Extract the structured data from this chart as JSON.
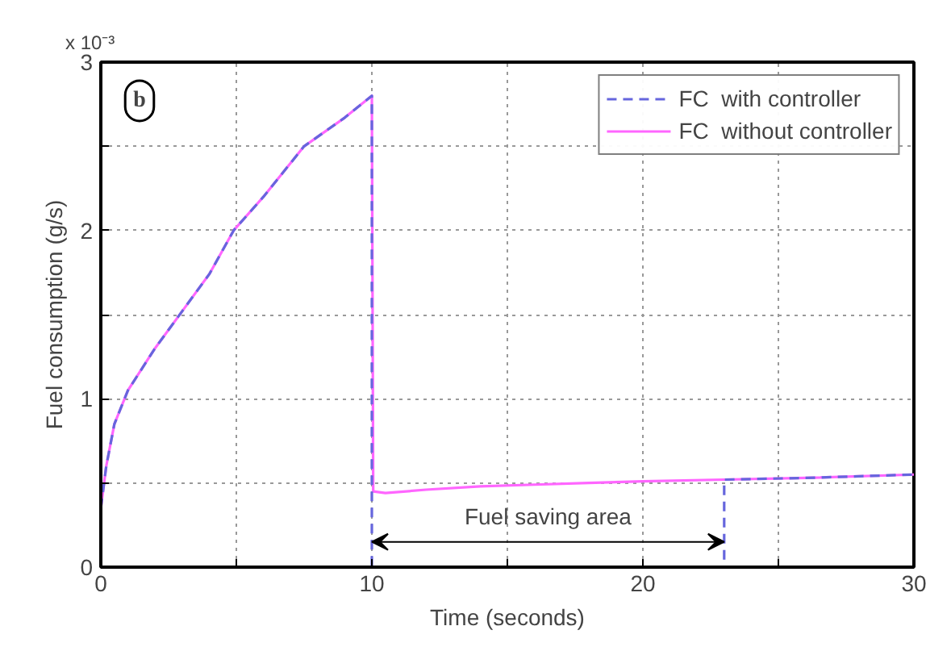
{
  "chart_data": {
    "type": "line",
    "xlabel": "Time (seconds)",
    "ylabel": "Fuel consumption (g/s)",
    "annotations": [
      "b",
      "x 10⁻³",
      "Fuel saving area"
    ],
    "series": [
      {
        "name": "FC  with controller",
        "color": "#6666dd",
        "line_style": "dashed",
        "x": [
          0,
          0.2,
          0.5,
          1,
          2,
          3,
          4,
          4.9,
          6,
          7.5,
          9,
          10,
          10,
          23,
          23,
          26,
          30
        ],
        "values": [
          0.35,
          0.6,
          0.85,
          1.05,
          1.3,
          1.52,
          1.74,
          2.0,
          2.2,
          2.5,
          2.67,
          2.8,
          0,
          0,
          0.52,
          0.53,
          0.55
        ]
      },
      {
        "name": "FC  without controller",
        "color": "#ff66ff",
        "line_style": "solid",
        "x": [
          0,
          0.2,
          0.5,
          1,
          2,
          3,
          4,
          4.9,
          6,
          7.5,
          9,
          10,
          10.05,
          10.5,
          12,
          14,
          16,
          18,
          20,
          23,
          26,
          30
        ],
        "values": [
          0.35,
          0.6,
          0.85,
          1.05,
          1.3,
          1.52,
          1.74,
          2.0,
          2.2,
          2.5,
          2.67,
          2.8,
          0.45,
          0.44,
          0.46,
          0.48,
          0.49,
          0.5,
          0.51,
          0.52,
          0.53,
          0.55
        ]
      }
    ],
    "xlim": [
      0,
      30
    ],
    "ylim": [
      0,
      3
    ],
    "xticks": [
      0,
      {
        "value": 5,
        "label": null
      },
      10,
      {
        "value": 15,
        "label": null
      },
      20,
      {
        "value": 25,
        "label": null
      },
      30
    ],
    "yticks": [
      0,
      {
        "value": 0.5,
        "label": null
      },
      1,
      {
        "value": 1.5,
        "label": null
      },
      2,
      {
        "value": 2.5,
        "label": null
      },
      3
    ],
    "grid": true,
    "legend": "top right"
  }
}
